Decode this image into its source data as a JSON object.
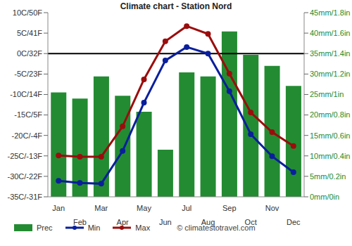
{
  "chart_data": {
    "type": "bar",
    "title": "Climate chart - Station Nord",
    "source": "© climatestotravel.com",
    "categories": [
      "Jan",
      "Feb",
      "Mar",
      "Apr",
      "May",
      "Jun",
      "Jul",
      "Aug",
      "Sep",
      "Oct",
      "Nov",
      "Dec"
    ],
    "series": [
      {
        "name": "Prec",
        "type": "bar",
        "axis": "y2",
        "color": "#238b32",
        "values": [
          25.5,
          24,
          29.4,
          24.7,
          20.8,
          11.5,
          30.4,
          29.4,
          40.4,
          34.7,
          32,
          27.1
        ]
      },
      {
        "name": "Min",
        "type": "line",
        "color": "#0a1f9c",
        "marker": "circle",
        "values": [
          -31.1,
          -31.6,
          -31.8,
          -23.8,
          -12,
          -1.7,
          1.6,
          0,
          -9.2,
          -19.7,
          -25.1,
          -29
        ]
      },
      {
        "name": "Max",
        "type": "line",
        "color": "#9b0d0d",
        "marker": "circle",
        "values": [
          -24.9,
          -25.2,
          -25.2,
          -17.8,
          -6.3,
          3,
          6.7,
          4.8,
          -4.9,
          -14.4,
          -19.2,
          -22.6
        ]
      }
    ],
    "ylim": [
      -35,
      10
    ],
    "yticks": [
      {
        "value": -35,
        "label": "-35C/-31F"
      },
      {
        "value": -30,
        "label": "-30C/-22F"
      },
      {
        "value": -25,
        "label": "-25C/-13F"
      },
      {
        "value": -20,
        "label": "-20C/-4F"
      },
      {
        "value": -15,
        "label": "-15C/5F"
      },
      {
        "value": -10,
        "label": "-10C/14F"
      },
      {
        "value": -5,
        "label": "-5C/23F"
      },
      {
        "value": 0,
        "label": "0C/32F"
      },
      {
        "value": 5,
        "label": "5C/41F"
      },
      {
        "value": 10,
        "label": "10C/50F"
      }
    ],
    "y2lim": [
      0,
      45
    ],
    "y2ticks": [
      {
        "value": 0,
        "label": "0mm/0in"
      },
      {
        "value": 5,
        "label": "5mm/0.2in"
      },
      {
        "value": 10,
        "label": "10mm/0.4in"
      },
      {
        "value": 15,
        "label": "15mm/0.6in"
      },
      {
        "value": 20,
        "label": "20mm/0.8in"
      },
      {
        "value": 25,
        "label": "25mm/1in"
      },
      {
        "value": 30,
        "label": "30mm/1.2in"
      },
      {
        "value": 35,
        "label": "35mm/1.4in"
      },
      {
        "value": 40,
        "label": "40mm/1.6in"
      },
      {
        "value": 45,
        "label": "45mm/1.8in"
      }
    ],
    "reference_line": 0,
    "grid": false
  }
}
